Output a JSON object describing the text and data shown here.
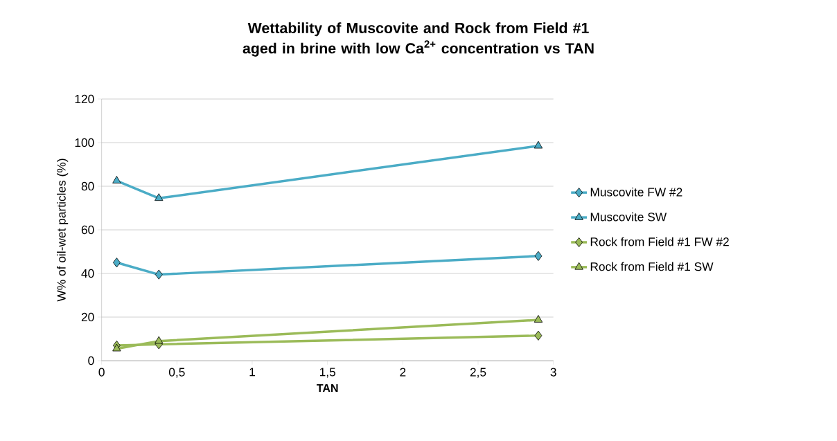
{
  "chart_data": {
    "type": "line",
    "title": "Wettability of  Muscovite and Rock  from Field #1  aged in brine with low Ca$^{2+}$ concentration  vs TAN",
    "xlabel": "TAN",
    "ylabel": "W% of oil-wet particles (%)",
    "xlim": [
      0,
      3
    ],
    "ylim": [
      0,
      120
    ],
    "xticks": [
      0,
      {
        "value": 0.5,
        "label": "0,5"
      },
      1,
      {
        "value": 1.5,
        "label": "1,5"
      },
      2,
      {
        "value": 2.5,
        "label": "2,5"
      },
      3
    ],
    "yticks": [
      0,
      20,
      40,
      60,
      80,
      100,
      120
    ],
    "grid": "y",
    "legend": "right",
    "x": [
      0.1,
      0.38,
      2.9
    ],
    "series": [
      {
        "name": "Muscovite FW #2",
        "color": "#4bacc6",
        "marker": "diamond",
        "values": [
          45,
          39.5,
          48
        ]
      },
      {
        "name": "Muscovite SW",
        "color": "#4bacc6",
        "marker": "triangle",
        "values": [
          82.5,
          74.5,
          98.5
        ]
      },
      {
        "name": "Rock from Field #1 FW #2",
        "color": "#9bbb59",
        "marker": "diamond",
        "values": [
          7,
          7.5,
          11.5
        ]
      },
      {
        "name": "Rock from Field #1 SW",
        "color": "#9bbb59",
        "marker": "triangle",
        "values": [
          5.5,
          9,
          18.7
        ]
      }
    ]
  }
}
